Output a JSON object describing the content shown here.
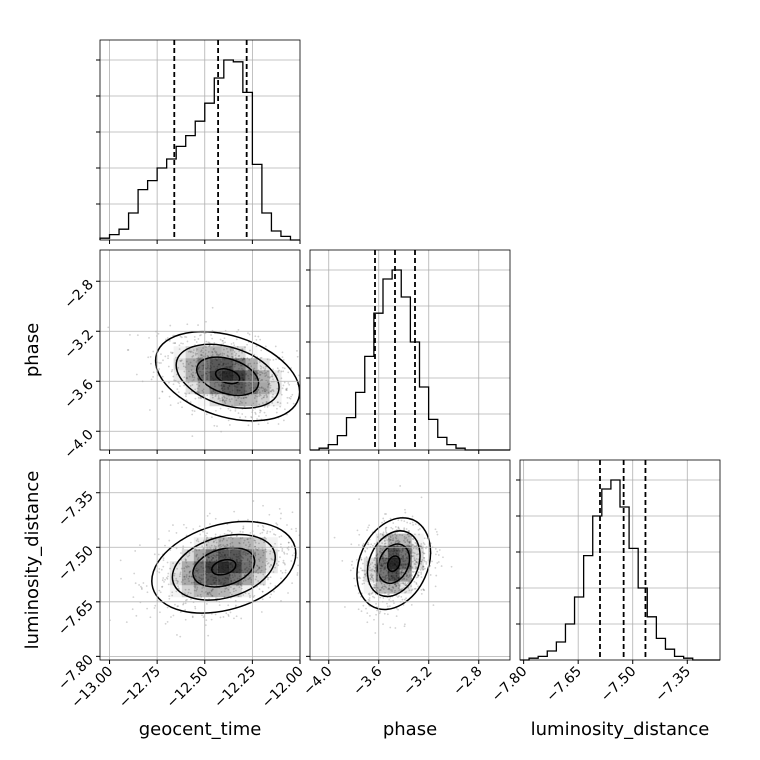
{
  "chart_data": {
    "type": "corner",
    "parameters": [
      {
        "name": "geocent_time",
        "range": [
          -13.05,
          -12.0
        ],
        "ticks": [
          -13.0,
          -12.75,
          -12.5,
          -12.25,
          -12.0
        ],
        "tick_labels": [
          "−13.00",
          "−12.75",
          "−12.50",
          "−12.25",
          "−12.00"
        ],
        "quantiles": [
          -12.66,
          -12.43,
          -12.28
        ]
      },
      {
        "name": "phase",
        "range": [
          -4.15,
          -2.55
        ],
        "ticks": [
          -4.0,
          -3.6,
          -3.2,
          -2.8
        ],
        "tick_labels": [
          "−4.0",
          "−3.6",
          "−3.2",
          "−2.8"
        ],
        "quantiles": [
          -3.63,
          -3.47,
          -3.31
        ]
      },
      {
        "name": "luminosity_distance",
        "range": [
          -7.81,
          -7.26
        ],
        "ticks": [
          -7.8,
          -7.65,
          -7.5,
          -7.35
        ],
        "tick_labels": [
          "−7.80",
          "−7.65",
          "−7.50",
          "−7.35"
        ],
        "quantiles": [
          -7.59,
          -7.525,
          -7.465
        ]
      }
    ],
    "histograms": [
      {
        "parameter": "geocent_time",
        "bin_edges": [
          -13.05,
          -13.0,
          -12.95,
          -12.9,
          -12.85,
          -12.8,
          -12.75,
          -12.7,
          -12.65,
          -12.6,
          -12.55,
          -12.5,
          -12.45,
          -12.4,
          -12.35,
          -12.3,
          -12.25,
          -12.2,
          -12.15,
          -12.1,
          -12.05,
          -12.0
        ],
        "counts": [
          1,
          3,
          6,
          15,
          28,
          33,
          40,
          45,
          52,
          58,
          66,
          76,
          90,
          100,
          99,
          82,
          42,
          15,
          5,
          2,
          0
        ]
      },
      {
        "parameter": "phase",
        "bin_edges": [
          -4.15,
          -4.077,
          -4.004,
          -3.931,
          -3.858,
          -3.785,
          -3.712,
          -3.639,
          -3.566,
          -3.493,
          -3.42,
          -3.347,
          -3.274,
          -3.201,
          -3.128,
          -3.055,
          -2.982,
          -2.909,
          -2.836,
          -2.763,
          -2.69,
          -2.617,
          -2.55
        ],
        "counts": [
          0,
          1,
          3,
          8,
          18,
          32,
          52,
          76,
          95,
          100,
          85,
          60,
          35,
          17,
          7,
          3,
          1,
          0,
          0,
          0,
          0,
          0
        ]
      },
      {
        "parameter": "luminosity_distance",
        "bin_edges": [
          -7.81,
          -7.785,
          -7.76,
          -7.735,
          -7.71,
          -7.685,
          -7.66,
          -7.635,
          -7.61,
          -7.585,
          -7.56,
          -7.535,
          -7.51,
          -7.485,
          -7.46,
          -7.435,
          -7.41,
          -7.385,
          -7.36,
          -7.335,
          -7.31,
          -7.285,
          -7.26
        ],
        "counts": [
          0,
          1,
          2,
          5,
          10,
          20,
          35,
          58,
          80,
          95,
          100,
          85,
          62,
          40,
          24,
          12,
          6,
          2,
          1,
          0,
          0,
          0
        ]
      }
    ],
    "joint": [
      {
        "x": "geocent_time",
        "y": "phase",
        "mode": [
          -12.38,
          -3.56
        ],
        "sigma": [
          0.18,
          0.17
        ],
        "correlation": -0.35
      },
      {
        "x": "geocent_time",
        "y": "luminosity_distance",
        "mode": [
          -12.4,
          -7.555
        ],
        "sigma": [
          0.18,
          0.06
        ],
        "correlation": 0.3
      },
      {
        "x": "phase",
        "y": "luminosity_distance",
        "mode": [
          -3.48,
          -7.545
        ],
        "sigma": [
          0.14,
          0.06
        ],
        "correlation": 0.25
      }
    ],
    "grid": true,
    "xlabel_geocent_time": "geocent_time",
    "xlabel_phase": "phase",
    "xlabel_luminosity_distance": "luminosity_distance",
    "ylabel_phase": "phase",
    "ylabel_luminosity_distance": "luminosity_distance"
  }
}
